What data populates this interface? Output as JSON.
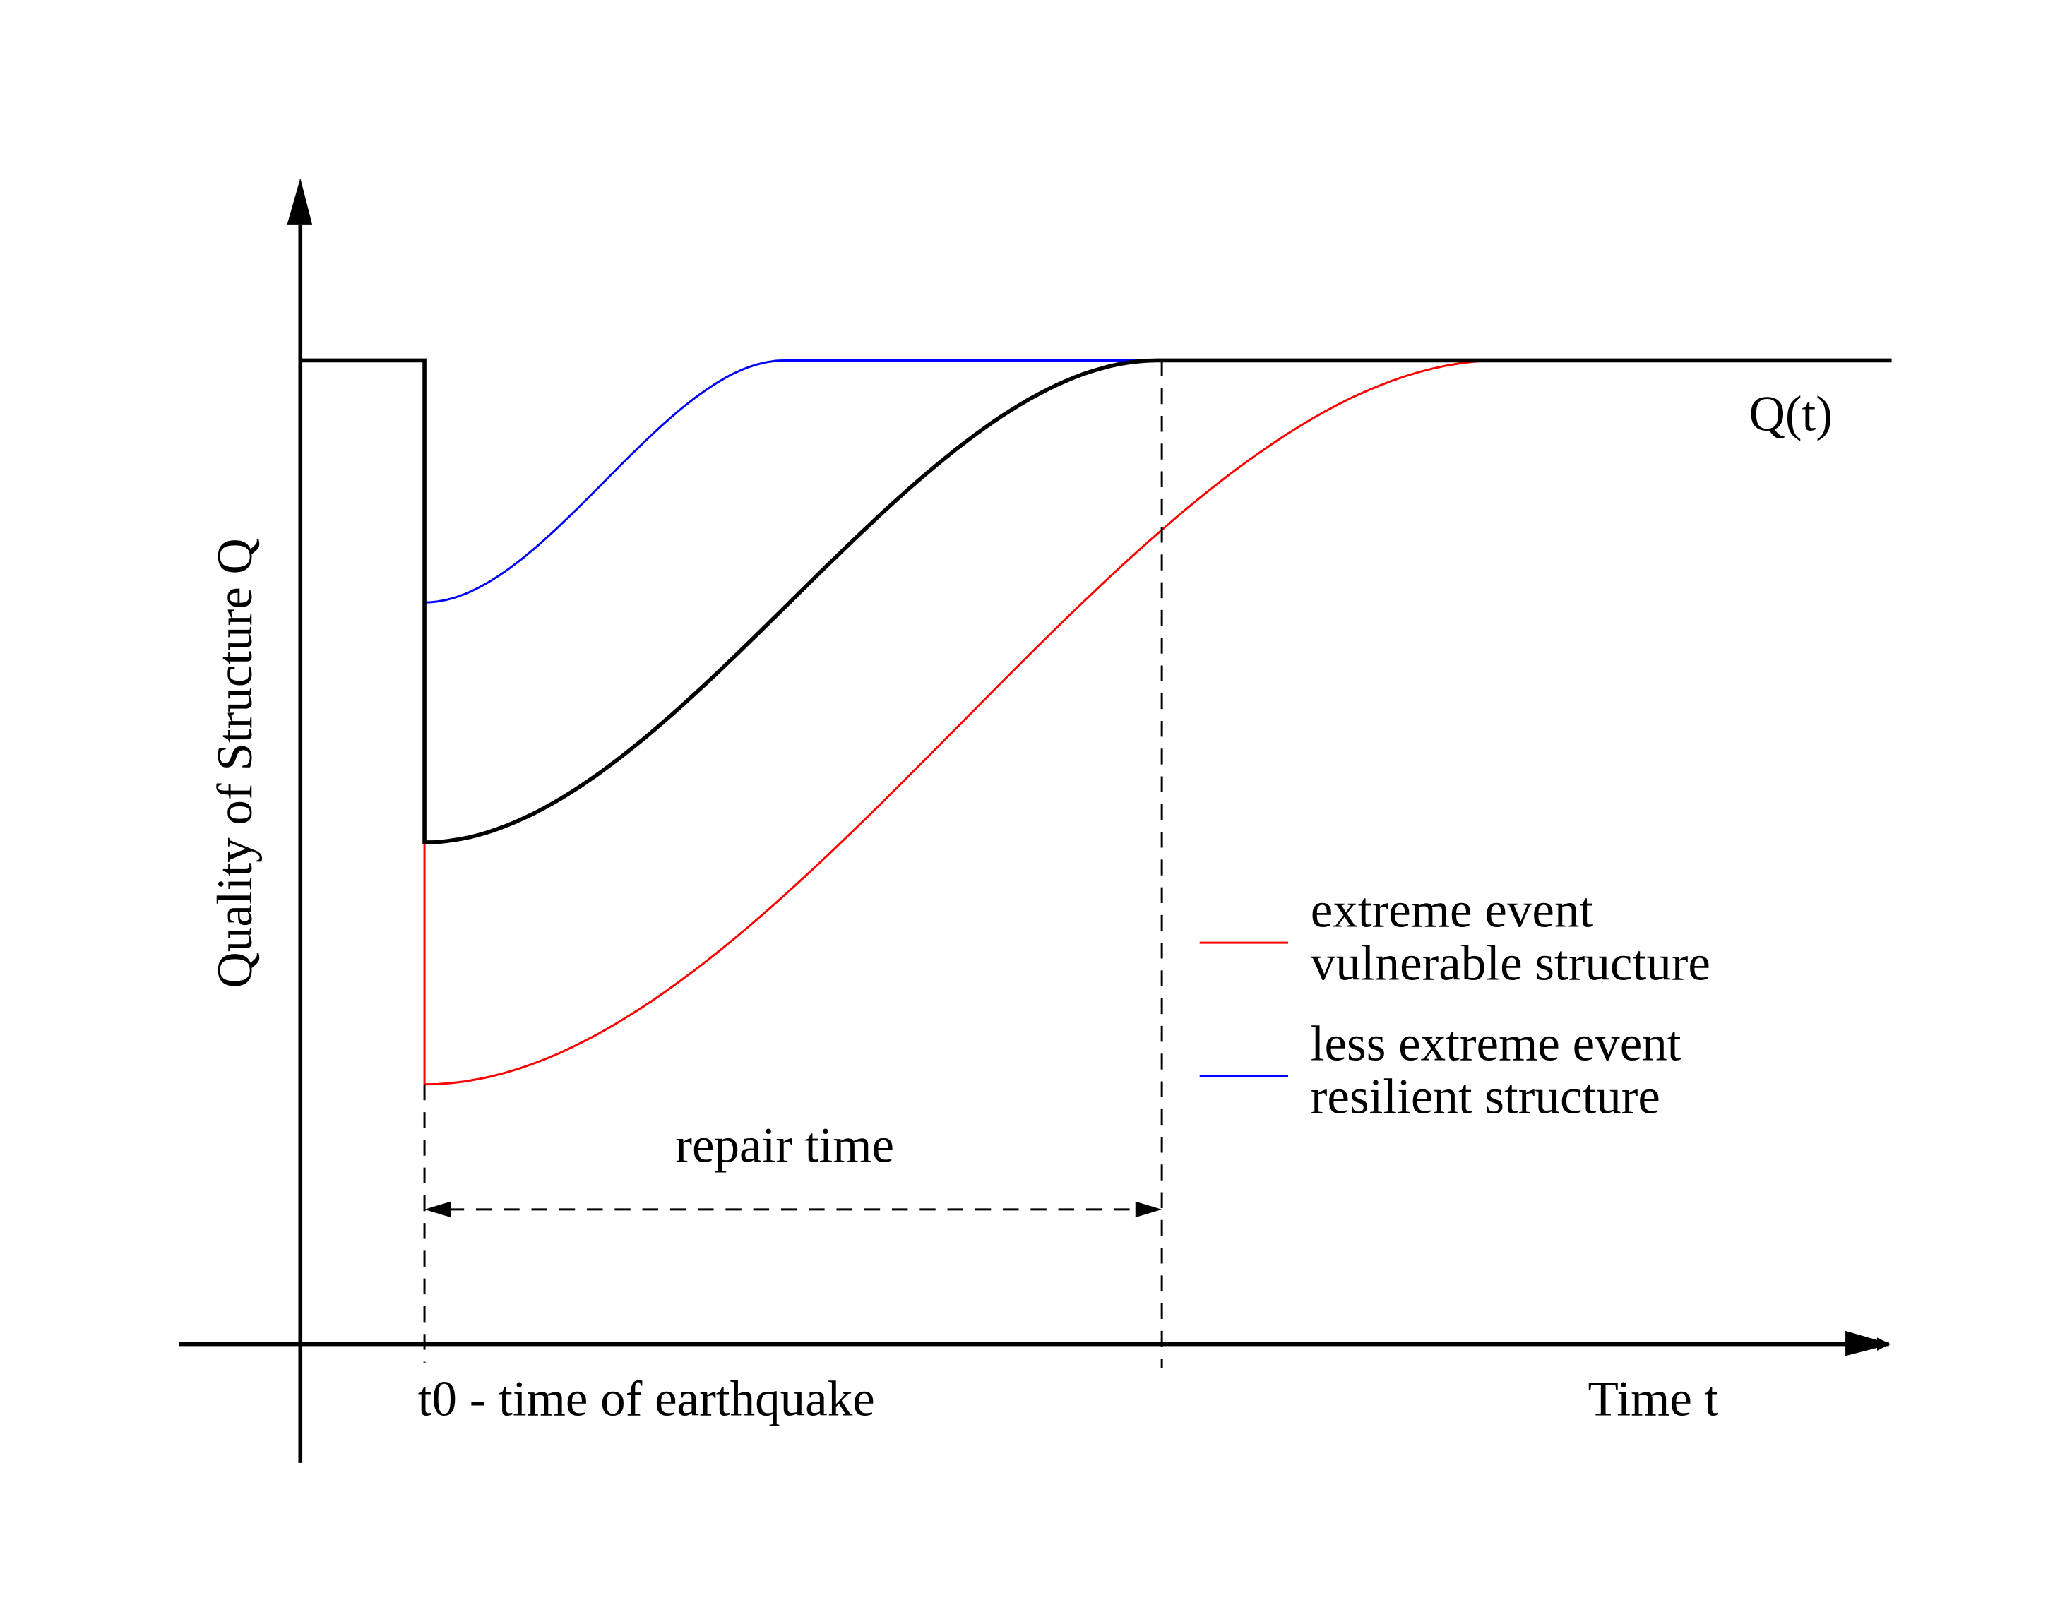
{
  "chart_data": {
    "type": "line",
    "title": "",
    "xlabel": "Time t",
    "ylabel": "Quality of Structure Q",
    "xlim": [
      0,
      12.8
    ],
    "ylim": [
      0,
      1
    ],
    "t0": 1.0,
    "t0_label": "t0 - time of earthquake",
    "repair_end": 6.94,
    "repair_label": "repair time",
    "curve_label": "Q(t)",
    "series": [
      {
        "name": "Q(t)",
        "color": "#000000",
        "min_q": 0.51,
        "recovery_end": 6.9,
        "full_q": 1.0
      },
      {
        "name": "extreme event vulnerable structure",
        "color": "#ff0000",
        "min_q": 0.264,
        "recovery_end": 9.66,
        "full_q": 1.0
      },
      {
        "name": "less extreme event resilient structure",
        "color": "#0000ff",
        "min_q": 0.754,
        "recovery_end": 3.9,
        "full_q": 1.0
      }
    ],
    "legend": [
      {
        "line1": "extreme event",
        "line2": "vulnerable structure",
        "color": "#ff0000"
      },
      {
        "line1": "less extreme event",
        "line2": "resilient structure",
        "color": "#0000ff"
      }
    ],
    "legend_placement": "center-right",
    "grid": false
  }
}
